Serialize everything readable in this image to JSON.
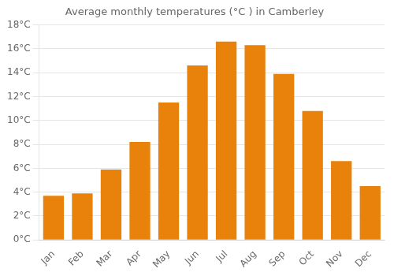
{
  "chart_data": {
    "type": "bar",
    "title": "Average monthly temperatures (°C ) in Camberley",
    "categories": [
      "Jan",
      "Feb",
      "Mar",
      "Apr",
      "May",
      "Jun",
      "Jul",
      "Aug",
      "Sep",
      "Oct",
      "Nov",
      "Dec"
    ],
    "values": [
      3.7,
      3.9,
      5.9,
      8.2,
      11.5,
      14.6,
      16.6,
      16.3,
      13.9,
      10.8,
      6.6,
      4.5
    ],
    "color": "#E8820A",
    "ylim": [
      0,
      18
    ],
    "yticks": [
      {
        "value": 0,
        "label": "0°C"
      },
      {
        "value": 2,
        "label": "2°C"
      },
      {
        "value": 4,
        "label": "4°C"
      },
      {
        "value": 6,
        "label": "6°C"
      },
      {
        "value": 8,
        "label": "8°C"
      },
      {
        "value": 10,
        "label": "10°C"
      },
      {
        "value": 12,
        "label": "12°C"
      },
      {
        "value": 14,
        "label": "14°C"
      },
      {
        "value": 16,
        "label": "16°C"
      },
      {
        "value": 18,
        "label": "18°C"
      }
    ],
    "grid": true
  }
}
